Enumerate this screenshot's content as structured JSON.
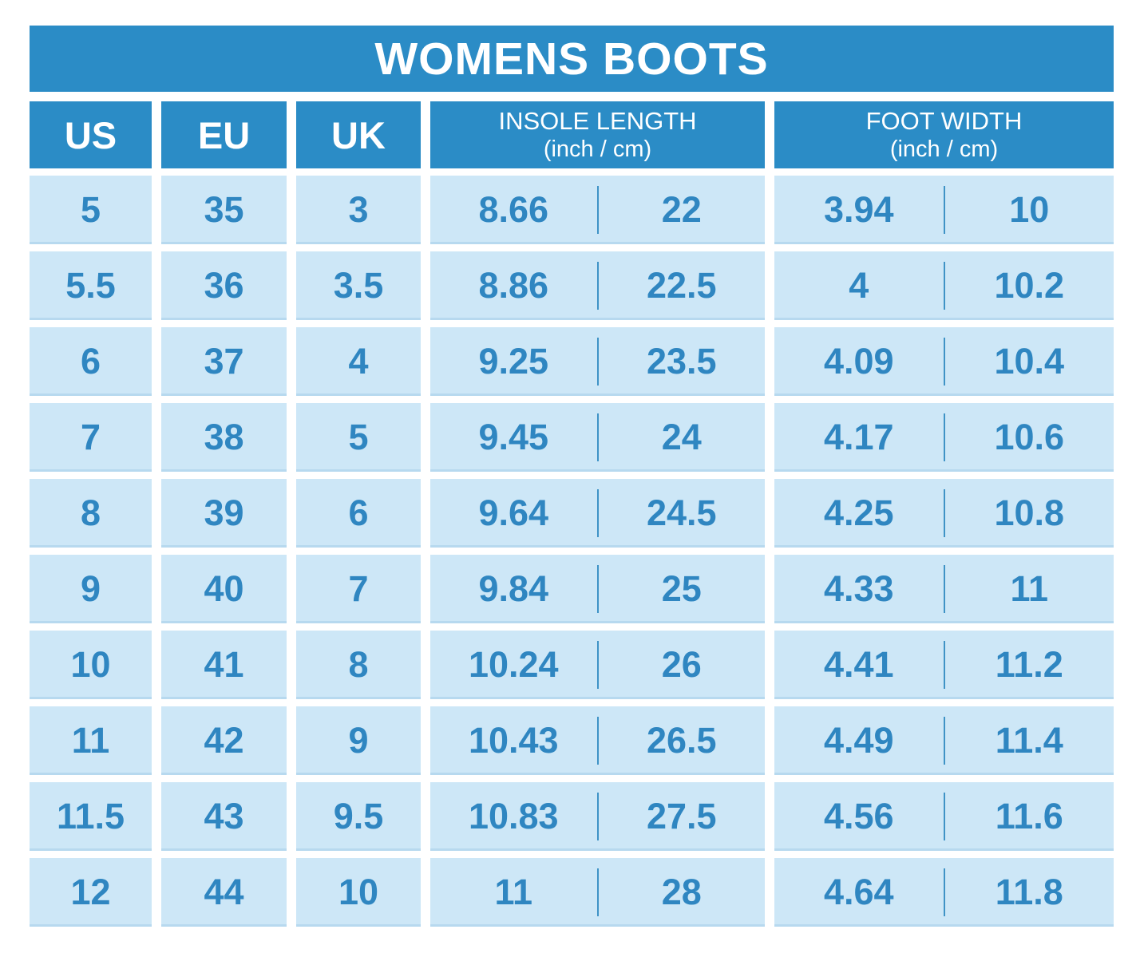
{
  "chart_data": {
    "type": "table",
    "title": "WOMENS BOOTS",
    "columns": [
      {
        "label": "US"
      },
      {
        "label": "EU"
      },
      {
        "label": "UK"
      },
      {
        "label": "INSOLE LENGTH",
        "sublabel": "(inch / cm)"
      },
      {
        "label": "FOOT WIDTH",
        "sublabel": "(inch / cm)"
      }
    ],
    "rows": [
      {
        "us": "5",
        "eu": "35",
        "uk": "3",
        "insole_inch": "8.66",
        "insole_cm": "22",
        "width_inch": "3.94",
        "width_cm": "10"
      },
      {
        "us": "5.5",
        "eu": "36",
        "uk": "3.5",
        "insole_inch": "8.86",
        "insole_cm": "22.5",
        "width_inch": "4",
        "width_cm": "10.2"
      },
      {
        "us": "6",
        "eu": "37",
        "uk": "4",
        "insole_inch": "9.25",
        "insole_cm": "23.5",
        "width_inch": "4.09",
        "width_cm": "10.4"
      },
      {
        "us": "7",
        "eu": "38",
        "uk": "5",
        "insole_inch": "9.45",
        "insole_cm": "24",
        "width_inch": "4.17",
        "width_cm": "10.6"
      },
      {
        "us": "8",
        "eu": "39",
        "uk": "6",
        "insole_inch": "9.64",
        "insole_cm": "24.5",
        "width_inch": "4.25",
        "width_cm": "10.8"
      },
      {
        "us": "9",
        "eu": "40",
        "uk": "7",
        "insole_inch": "9.84",
        "insole_cm": "25",
        "width_inch": "4.33",
        "width_cm": "11"
      },
      {
        "us": "10",
        "eu": "41",
        "uk": "8",
        "insole_inch": "10.24",
        "insole_cm": "26",
        "width_inch": "4.41",
        "width_cm": "11.2"
      },
      {
        "us": "11",
        "eu": "42",
        "uk": "9",
        "insole_inch": "10.43",
        "insole_cm": "26.5",
        "width_inch": "4.49",
        "width_cm": "11.4"
      },
      {
        "us": "11.5",
        "eu": "43",
        "uk": "9.5",
        "insole_inch": "10.83",
        "insole_cm": "27.5",
        "width_inch": "4.56",
        "width_cm": "11.6"
      },
      {
        "us": "12",
        "eu": "44",
        "uk": "10",
        "insole_inch": "11",
        "insole_cm": "28",
        "width_inch": "4.64",
        "width_cm": "11.8"
      }
    ]
  },
  "colors": {
    "header_bg": "#2b8cc6",
    "cell_bg": "#cde7f7",
    "cell_text": "#2f86c1",
    "divider": "#3f93c6"
  }
}
